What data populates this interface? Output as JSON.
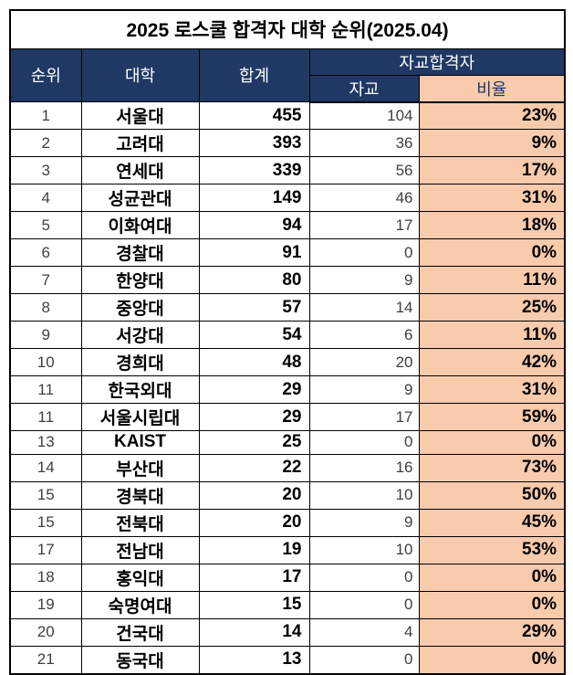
{
  "title": "2025 로스쿨 합격자 대학 순위(2025.04)",
  "colors": {
    "header_bg": "#1F3864",
    "header_text": "#FFFFFF",
    "ratio_bg": "#F8CBAD",
    "ratio_header_text": "#1F3864",
    "border": "#000000",
    "page_bg": "#FFFFFF"
  },
  "header": {
    "rank": "순위",
    "university": "대학",
    "total": "합계",
    "own_group": "자교합격자",
    "own": "자교",
    "ratio": "비율"
  },
  "chart_data": {
    "type": "table",
    "title": "2025 로스쿨 합격자 대학 순위(2025.04)",
    "columns": [
      "순위",
      "대학",
      "합계",
      "자교",
      "비율"
    ],
    "header_groups": [
      {
        "label": "자교합격자",
        "spans": [
          "자교",
          "비율"
        ]
      }
    ],
    "rows": [
      [
        "1",
        "서울대",
        "455",
        "104",
        "23%"
      ],
      [
        "2",
        "고려대",
        "393",
        "36",
        "9%"
      ],
      [
        "3",
        "연세대",
        "339",
        "56",
        "17%"
      ],
      [
        "4",
        "성균관대",
        "149",
        "46",
        "31%"
      ],
      [
        "5",
        "이화여대",
        "94",
        "17",
        "18%"
      ],
      [
        "6",
        "경찰대",
        "91",
        "0",
        "0%"
      ],
      [
        "7",
        "한양대",
        "80",
        "9",
        "11%"
      ],
      [
        "8",
        "중앙대",
        "57",
        "14",
        "25%"
      ],
      [
        "9",
        "서강대",
        "54",
        "6",
        "11%"
      ],
      [
        "10",
        "경희대",
        "48",
        "20",
        "42%"
      ],
      [
        "11",
        "한국외대",
        "29",
        "9",
        "31%"
      ],
      [
        "11",
        "서울시립대",
        "29",
        "17",
        "59%"
      ],
      [
        "13",
        "KAIST",
        "25",
        "0",
        "0%"
      ],
      [
        "14",
        "부산대",
        "22",
        "16",
        "73%"
      ],
      [
        "15",
        "경북대",
        "20",
        "10",
        "50%"
      ],
      [
        "15",
        "전북대",
        "20",
        "9",
        "45%"
      ],
      [
        "17",
        "전남대",
        "19",
        "10",
        "53%"
      ],
      [
        "18",
        "홍익대",
        "17",
        "0",
        "0%"
      ],
      [
        "19",
        "숙명여대",
        "15",
        "0",
        "0%"
      ],
      [
        "20",
        "건국대",
        "14",
        "4",
        "29%"
      ],
      [
        "21",
        "동국대",
        "13",
        "0",
        "0%"
      ]
    ]
  }
}
